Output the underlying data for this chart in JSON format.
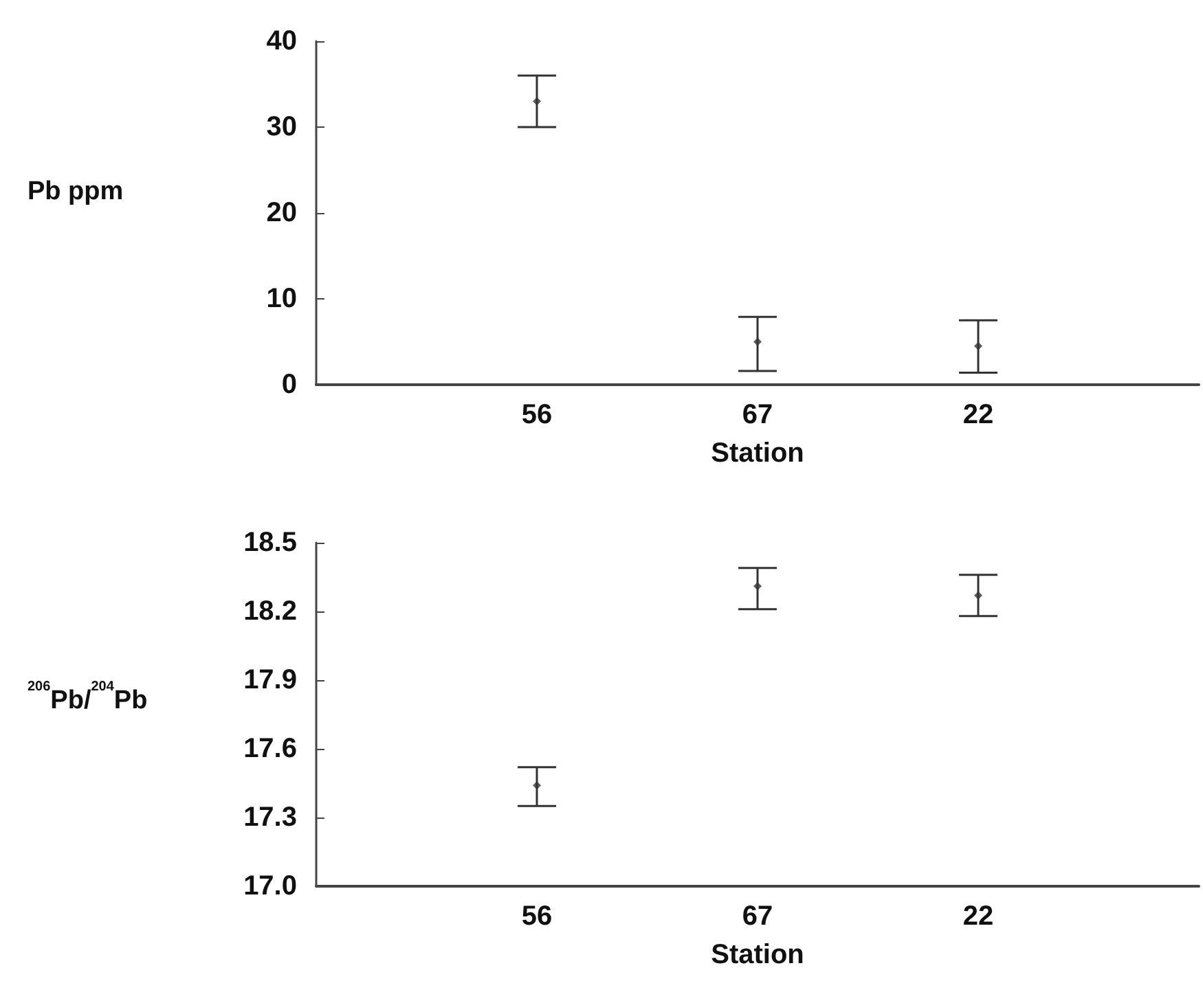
{
  "chart_data": [
    {
      "type": "scatter",
      "ylabel": "Pb ppm",
      "xlabel": "Station",
      "categories": [
        "56",
        "67",
        "22"
      ],
      "values": [
        33,
        5,
        4.5
      ],
      "errors": [
        [
          30,
          36
        ],
        [
          1.6,
          7.9
        ],
        [
          1.4,
          7.5
        ]
      ],
      "color": "#333333",
      "marker": "diamond",
      "ylim": [
        0,
        40
      ],
      "yticks": [
        0,
        10,
        20,
        30,
        40
      ]
    },
    {
      "type": "scatter",
      "ylabel": "$^{206}$Pb/$^{204}$Pb",
      "xlabel": "Station",
      "categories": [
        "56",
        "67",
        "22"
      ],
      "values": [
        17.44,
        18.31,
        18.27
      ],
      "errors": [
        [
          17.35,
          17.52
        ],
        [
          18.21,
          18.39
        ],
        [
          18.18,
          18.36
        ]
      ],
      "color": "#333333",
      "marker": "diamond",
      "ylim": [
        17.0,
        18.5
      ],
      "yticks": [
        {
          "value": 17.0,
          "label": "17.0"
        },
        17.3,
        17.6,
        17.9,
        18.2,
        18.5
      ]
    }
  ]
}
